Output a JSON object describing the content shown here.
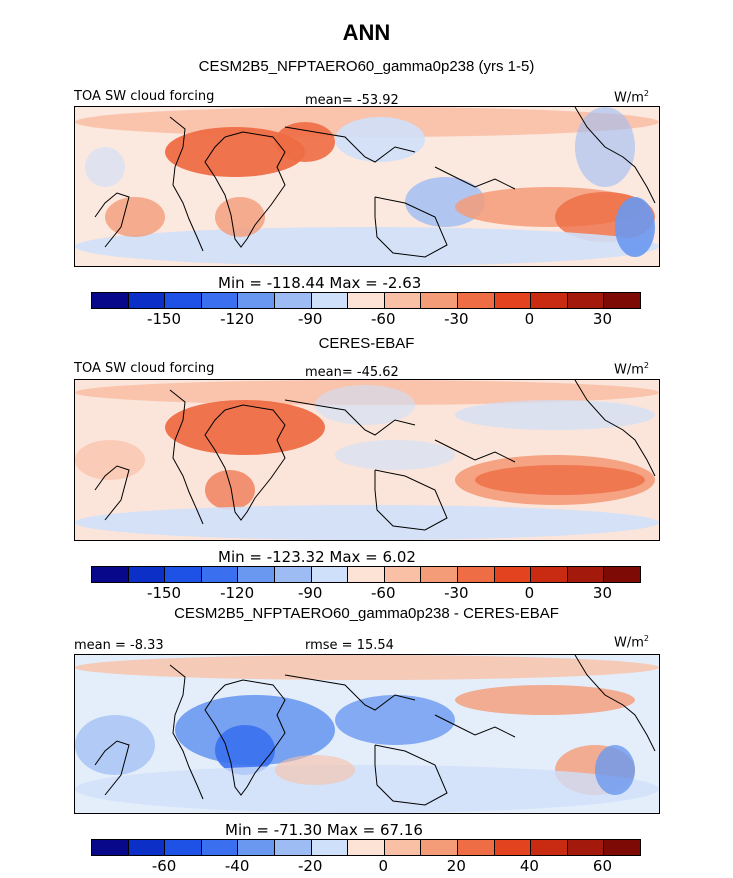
{
  "main_title": "ANN",
  "panels": [
    {
      "subtitle": "CESM2B5_NFPTAERO60_gamma0p238 (yrs 1-5)",
      "left_label": "TOA SW cloud forcing",
      "center_label": "mean= -53.92",
      "units": "W/m",
      "units_sup": "2",
      "minmax": "Min = -118.44 Max =  -2.63",
      "colorbar_ticks": [
        "-150",
        "-120",
        "-90",
        "-60",
        "-30",
        "0",
        "30"
      ],
      "colorbar_colors": [
        "#08088a",
        "#0b2fc7",
        "#1e52e6",
        "#3a70f0",
        "#6a98f0",
        "#9dbcf3",
        "#cfe0fa",
        "#fde3d6",
        "#f9c0a6",
        "#f49b78",
        "#ee6d44",
        "#e4431f",
        "#c92a12",
        "#a31a0c",
        "#7e0a05"
      ],
      "map_style": "model"
    },
    {
      "subtitle": "CERES-EBAF",
      "left_label": "TOA SW cloud forcing",
      "center_label": "mean= -45.62",
      "units": "W/m",
      "units_sup": "2",
      "minmax": "Min = -123.32 Max =   6.02",
      "colorbar_ticks": [
        "-150",
        "-120",
        "-90",
        "-60",
        "-30",
        "0",
        "30"
      ],
      "colorbar_colors": [
        "#08088a",
        "#0b2fc7",
        "#1e52e6",
        "#3a70f0",
        "#6a98f0",
        "#9dbcf3",
        "#cfe0fa",
        "#fde3d6",
        "#f9c0a6",
        "#f49b78",
        "#ee6d44",
        "#e4431f",
        "#c92a12",
        "#a31a0c",
        "#7e0a05"
      ],
      "map_style": "obs"
    },
    {
      "subtitle": "CESM2B5_NFPTAERO60_gamma0p238 - CERES-EBAF",
      "left_label": "mean =  -8.33",
      "center_label": "rmse =  15.54",
      "units": "W/m",
      "units_sup": "2",
      "minmax": "Min = -71.30 Max =  67.16",
      "colorbar_ticks": [
        "-60",
        "-40",
        "-20",
        "0",
        "20",
        "40",
        "60"
      ],
      "colorbar_colors": [
        "#08088a",
        "#0b2fc7",
        "#1e52e6",
        "#3a70f0",
        "#6a98f0",
        "#9dbcf3",
        "#cfe0fa",
        "#fde3d6",
        "#f9c0a6",
        "#f49b78",
        "#ee6d44",
        "#e4431f",
        "#c92a12",
        "#a31a0c",
        "#7e0a05"
      ],
      "map_style": "diff"
    }
  ],
  "chart_data": [
    {
      "type": "heatmap",
      "title": "ANN",
      "subtitle": "CESM2B5_NFPTAERO60_gamma0p238 (yrs 1-5)",
      "variable": "TOA SW cloud forcing",
      "units": "W/m2",
      "mean": -53.92,
      "min": -118.44,
      "max": -2.63,
      "colorbar_levels": [
        -150,
        -120,
        -90,
        -60,
        -30,
        0,
        30
      ]
    },
    {
      "type": "heatmap",
      "subtitle": "CERES-EBAF",
      "variable": "TOA SW cloud forcing",
      "units": "W/m2",
      "mean": -45.62,
      "min": -123.32,
      "max": 6.02,
      "colorbar_levels": [
        -150,
        -120,
        -90,
        -60,
        -30,
        0,
        30
      ]
    },
    {
      "type": "heatmap",
      "subtitle": "CESM2B5_NFPTAERO60_gamma0p238 - CERES-EBAF",
      "units": "W/m2",
      "mean": -8.33,
      "rmse": 15.54,
      "min": -71.3,
      "max": 67.16,
      "colorbar_levels": [
        -60,
        -40,
        -20,
        0,
        20,
        40,
        60
      ]
    }
  ]
}
